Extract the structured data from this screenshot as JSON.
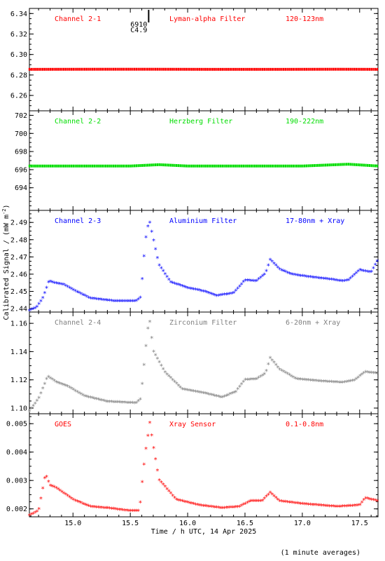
{
  "chart_data": {
    "type": "scatter",
    "xlabel": "Time / h UTC, 14 Apr 2025",
    "ylabel": "Calibrated Signal / (mW m",
    "ylabel_sup": "-2",
    "ylabel_close": ")",
    "footnote": "(1 minute averages)",
    "xlim": [
      14.62,
      17.66
    ],
    "x_ticks": [
      "15.0",
      "15.5",
      "16.0",
      "16.5",
      "17.0",
      "17.5"
    ],
    "flare_marker": {
      "x": 15.66,
      "lines": [
        "6910",
        "C4.9"
      ]
    },
    "panels": [
      {
        "channel": "Channel 2-1",
        "filter": "Lyman-alpha Filter",
        "band": "120-123nm",
        "color": "#ff0000",
        "ylim": [
          6.245,
          6.345
        ],
        "y_ticks": [
          "6.26",
          "6.28",
          "6.30",
          "6.32",
          "6.34"
        ],
        "series_key": [
          [
            14.62,
            6.2855
          ],
          [
            15.2,
            6.2856
          ],
          [
            15.7,
            6.2856
          ],
          [
            16.2,
            6.2855
          ],
          [
            16.8,
            6.2855
          ],
          [
            17.3,
            6.2856
          ],
          [
            17.66,
            6.2855
          ]
        ]
      },
      {
        "channel": "Channel 2-2",
        "filter": "Herzberg Filter",
        "band": "190-222nm",
        "color": "#00dd00",
        "ylim": [
          691.5,
          702.5
        ],
        "y_ticks": [
          "694",
          "696",
          "698",
          "700",
          "702"
        ],
        "series_key": [
          [
            14.62,
            696.4
          ],
          [
            15.0,
            696.4
          ],
          [
            15.5,
            696.4
          ],
          [
            15.75,
            696.55
          ],
          [
            16.0,
            696.4
          ],
          [
            16.5,
            696.4
          ],
          [
            17.0,
            696.4
          ],
          [
            17.4,
            696.6
          ],
          [
            17.66,
            696.4
          ]
        ]
      },
      {
        "channel": "Channel 2-3",
        "filter": "Aluminium Filter",
        "band": "17-80nm + Xray",
        "color": "#0000ff",
        "ylim": [
          2.438,
          2.497
        ],
        "y_ticks": [
          "2.44",
          "2.45",
          "2.46",
          "2.47",
          "2.48",
          "2.49"
        ],
        "series_key": [
          [
            14.62,
            2.4385
          ],
          [
            14.68,
            2.44
          ],
          [
            14.74,
            2.446
          ],
          [
            14.79,
            2.4555
          ],
          [
            14.84,
            2.4545
          ],
          [
            14.92,
            2.4535
          ],
          [
            15.0,
            2.4505
          ],
          [
            15.15,
            2.4455
          ],
          [
            15.35,
            2.444
          ],
          [
            15.55,
            2.444
          ],
          [
            15.59,
            2.446
          ],
          [
            15.62,
            2.47
          ],
          [
            15.64,
            2.483
          ],
          [
            15.665,
            2.491
          ],
          [
            15.7,
            2.48
          ],
          [
            15.75,
            2.465
          ],
          [
            15.85,
            2.455
          ],
          [
            16.0,
            2.4515
          ],
          [
            16.15,
            2.4495
          ],
          [
            16.25,
            2.447
          ],
          [
            16.4,
            2.4485
          ],
          [
            16.5,
            2.456
          ],
          [
            16.6,
            2.4555
          ],
          [
            16.68,
            2.46
          ],
          [
            16.72,
            2.468
          ],
          [
            16.8,
            2.4625
          ],
          [
            16.9,
            2.4595
          ],
          [
            17.05,
            2.458
          ],
          [
            17.25,
            2.4565
          ],
          [
            17.35,
            2.4555
          ],
          [
            17.4,
            2.456
          ],
          [
            17.5,
            2.462
          ],
          [
            17.6,
            2.4605
          ],
          [
            17.66,
            2.468
          ]
        ]
      },
      {
        "channel": "Channel 2-4",
        "filter": "Zirconium Filter",
        "band": "6-20nm + Xray",
        "color": "#808080",
        "ylim": [
          1.096,
          1.168
        ],
        "y_ticks": [
          "1.10",
          "1.12",
          "1.14",
          "1.16"
        ],
        "series_key": [
          [
            14.62,
            1.0975
          ],
          [
            14.7,
            1.106
          ],
          [
            14.78,
            1.122
          ],
          [
            14.85,
            1.118
          ],
          [
            14.95,
            1.115
          ],
          [
            15.1,
            1.108
          ],
          [
            15.3,
            1.104
          ],
          [
            15.55,
            1.103
          ],
          [
            15.59,
            1.106
          ],
          [
            15.62,
            1.13
          ],
          [
            15.645,
            1.15
          ],
          [
            15.665,
            1.164
          ],
          [
            15.7,
            1.14
          ],
          [
            15.8,
            1.125
          ],
          [
            15.95,
            1.113
          ],
          [
            16.15,
            1.11
          ],
          [
            16.3,
            1.107
          ],
          [
            16.42,
            1.111
          ],
          [
            16.5,
            1.1195
          ],
          [
            16.6,
            1.12
          ],
          [
            16.68,
            1.124
          ],
          [
            16.72,
            1.135
          ],
          [
            16.8,
            1.127
          ],
          [
            16.95,
            1.12
          ],
          [
            17.15,
            1.1185
          ],
          [
            17.35,
            1.1175
          ],
          [
            17.45,
            1.119
          ],
          [
            17.55,
            1.125
          ],
          [
            17.66,
            1.124
          ]
        ]
      },
      {
        "channel": "GOES",
        "filter": "Xray Sensor",
        "band": "0.1-0.8nm",
        "color": "#ff0000",
        "ylim": [
          0.00172,
          0.00535
        ],
        "y_ticks": [
          "0.002",
          "0.003",
          "0.004",
          "0.005"
        ],
        "series_key": [
          [
            14.62,
            0.00175
          ],
          [
            14.7,
            0.0019
          ],
          [
            14.76,
            0.0032
          ],
          [
            14.8,
            0.0028
          ],
          [
            14.86,
            0.0027
          ],
          [
            15.0,
            0.0023
          ],
          [
            15.15,
            0.00205
          ],
          [
            15.3,
            0.002
          ],
          [
            15.5,
            0.0019
          ],
          [
            15.58,
            0.0019
          ],
          [
            15.6,
            0.0028
          ],
          [
            15.63,
            0.0039
          ],
          [
            15.655,
            0.0046
          ],
          [
            15.67,
            0.005
          ],
          [
            15.7,
            0.0042
          ],
          [
            15.75,
            0.003
          ],
          [
            15.9,
            0.0023
          ],
          [
            16.1,
            0.0021
          ],
          [
            16.3,
            0.002
          ],
          [
            16.45,
            0.00205
          ],
          [
            16.55,
            0.00225
          ],
          [
            16.65,
            0.00225
          ],
          [
            16.72,
            0.00255
          ],
          [
            16.8,
            0.00225
          ],
          [
            17.0,
            0.00215
          ],
          [
            17.3,
            0.00205
          ],
          [
            17.5,
            0.0021
          ],
          [
            17.55,
            0.00235
          ],
          [
            17.66,
            0.00225
          ]
        ]
      }
    ]
  }
}
